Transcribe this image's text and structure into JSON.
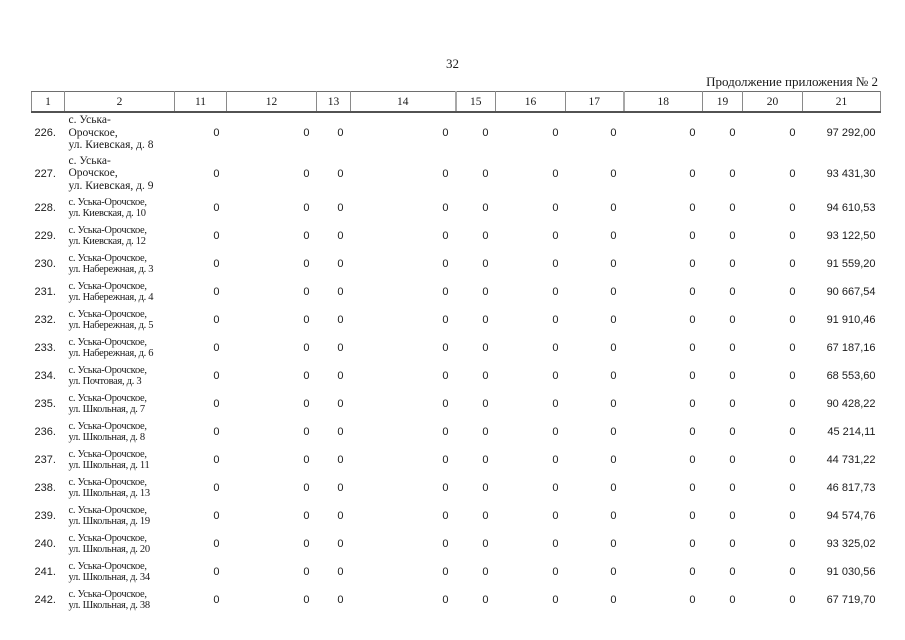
{
  "page": {
    "number": "32",
    "continuation": "Продолжение приложения № 2"
  },
  "table": {
    "columns": [
      "1",
      "2",
      "11",
      "12",
      "13",
      "14",
      "15",
      "16",
      "17",
      "18",
      "19",
      "20",
      "21"
    ],
    "rows": [
      {
        "num": "226.",
        "address_lines": [
          "с. Уська-",
          "Орочское,",
          "ул. Киевская, д. 8"
        ],
        "values": [
          "0",
          "0",
          "0",
          "0",
          "0",
          "0",
          "0",
          "0",
          "0",
          "0"
        ],
        "total": "97 292,00"
      },
      {
        "num": "227.",
        "address_lines": [
          "с. Уська-",
          "Орочское,",
          "ул. Киевская, д. 9"
        ],
        "values": [
          "0",
          "0",
          "0",
          "0",
          "0",
          "0",
          "0",
          "0",
          "0",
          "0"
        ],
        "total": "93 431,30"
      },
      {
        "num": "228.",
        "address_lines": [
          "с. Уська-Орочское,",
          "ул. Киевская, д. 10"
        ],
        "values": [
          "0",
          "0",
          "0",
          "0",
          "0",
          "0",
          "0",
          "0",
          "0",
          "0"
        ],
        "total": "94 610,53"
      },
      {
        "num": "229.",
        "address_lines": [
          "с. Уська-Орочское,",
          "ул. Киевская, д. 12"
        ],
        "values": [
          "0",
          "0",
          "0",
          "0",
          "0",
          "0",
          "0",
          "0",
          "0",
          "0"
        ],
        "total": "93 122,50"
      },
      {
        "num": "230.",
        "address_lines": [
          "с. Уська-Орочское,",
          "ул. Набережная, д. 3"
        ],
        "values": [
          "0",
          "0",
          "0",
          "0",
          "0",
          "0",
          "0",
          "0",
          "0",
          "0"
        ],
        "total": "91 559,20"
      },
      {
        "num": "231.",
        "address_lines": [
          "с. Уська-Орочское,",
          "ул. Набережная, д. 4"
        ],
        "values": [
          "0",
          "0",
          "0",
          "0",
          "0",
          "0",
          "0",
          "0",
          "0",
          "0"
        ],
        "total": "90 667,54"
      },
      {
        "num": "232.",
        "address_lines": [
          "с. Уська-Орочское,",
          "ул. Набережная, д. 5"
        ],
        "values": [
          "0",
          "0",
          "0",
          "0",
          "0",
          "0",
          "0",
          "0",
          "0",
          "0"
        ],
        "total": "91 910,46"
      },
      {
        "num": "233.",
        "address_lines": [
          "с. Уська-Орочское,",
          "ул. Набережная, д. 6"
        ],
        "values": [
          "0",
          "0",
          "0",
          "0",
          "0",
          "0",
          "0",
          "0",
          "0",
          "0"
        ],
        "total": "67 187,16"
      },
      {
        "num": "234.",
        "address_lines": [
          "с. Уська-Орочское,",
          "ул. Почтовая, д. 3"
        ],
        "values": [
          "0",
          "0",
          "0",
          "0",
          "0",
          "0",
          "0",
          "0",
          "0",
          "0"
        ],
        "total": "68 553,60"
      },
      {
        "num": "235.",
        "address_lines": [
          "с. Уська-Орочское,",
          "ул. Школьная, д. 7"
        ],
        "values": [
          "0",
          "0",
          "0",
          "0",
          "0",
          "0",
          "0",
          "0",
          "0",
          "0"
        ],
        "total": "90 428,22"
      },
      {
        "num": "236.",
        "address_lines": [
          "с. Уська-Орочское,",
          "ул. Школьная, д. 8"
        ],
        "values": [
          "0",
          "0",
          "0",
          "0",
          "0",
          "0",
          "0",
          "0",
          "0",
          "0"
        ],
        "total": "45 214,11"
      },
      {
        "num": "237.",
        "address_lines": [
          "с. Уська-Орочское,",
          "ул. Школьная, д. 11"
        ],
        "values": [
          "0",
          "0",
          "0",
          "0",
          "0",
          "0",
          "0",
          "0",
          "0",
          "0"
        ],
        "total": "44 731,22"
      },
      {
        "num": "238.",
        "address_lines": [
          "с. Уська-Орочское,",
          "ул. Школьная, д. 13"
        ],
        "values": [
          "0",
          "0",
          "0",
          "0",
          "0",
          "0",
          "0",
          "0",
          "0",
          "0"
        ],
        "total": "46 817,73"
      },
      {
        "num": "239.",
        "address_lines": [
          "с. Уська-Орочское,",
          "ул. Школьная, д. 19"
        ],
        "values": [
          "0",
          "0",
          "0",
          "0",
          "0",
          "0",
          "0",
          "0",
          "0",
          "0"
        ],
        "total": "94 574,76"
      },
      {
        "num": "240.",
        "address_lines": [
          "с. Уська-Орочское,",
          "ул. Школьная, д. 20"
        ],
        "values": [
          "0",
          "0",
          "0",
          "0",
          "0",
          "0",
          "0",
          "0",
          "0",
          "0"
        ],
        "total": "93 325,02"
      },
      {
        "num": "241.",
        "address_lines": [
          "с. Уська-Орочское,",
          "ул. Школьная, д. 34"
        ],
        "values": [
          "0",
          "0",
          "0",
          "0",
          "0",
          "0",
          "0",
          "0",
          "0",
          "0"
        ],
        "total": "91 030,56"
      },
      {
        "num": "242.",
        "address_lines": [
          "с. Уська-Орочское,",
          "ул. Школьная, д. 38"
        ],
        "values": [
          "0",
          "0",
          "0",
          "0",
          "0",
          "0",
          "0",
          "0",
          "0",
          "0"
        ],
        "total": "67 719,70"
      }
    ]
  }
}
